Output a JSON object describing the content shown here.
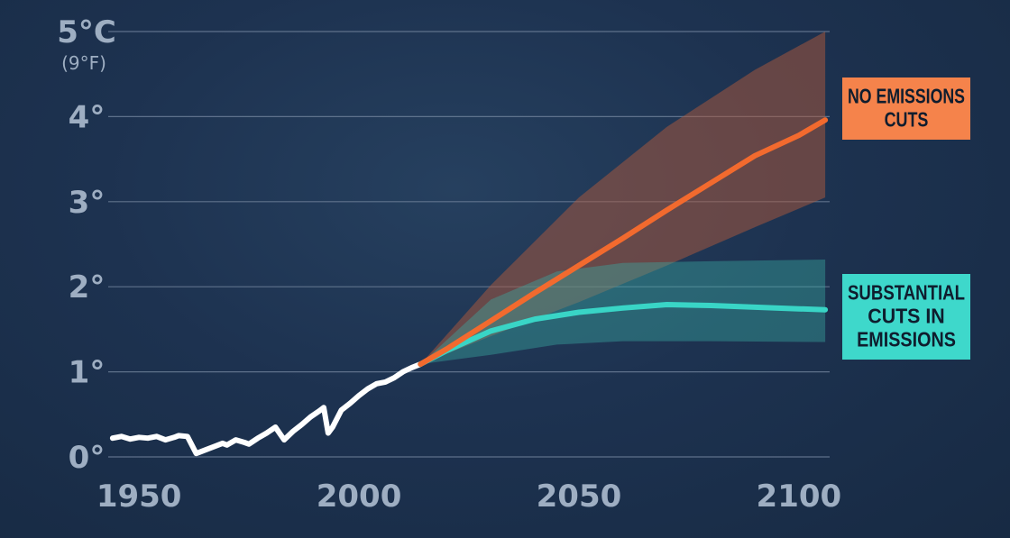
{
  "chart_data": {
    "type": "line",
    "xlim": [
      1943,
      2107
    ],
    "ylim": [
      0,
      5
    ],
    "y_ticks": [
      {
        "value": 0,
        "label": "0°"
      },
      {
        "value": 1,
        "label": "1°"
      },
      {
        "value": 2,
        "label": "2°"
      },
      {
        "value": 3,
        "label": "3°"
      },
      {
        "value": 4,
        "label": "4°"
      },
      {
        "value": 5,
        "label": "5°C",
        "sublabel": "(9°F)"
      }
    ],
    "x_ticks": [
      {
        "value": 1950,
        "label": "1950"
      },
      {
        "value": 2000,
        "label": "2000"
      },
      {
        "value": 2050,
        "label": "2050"
      },
      {
        "value": 2100,
        "label": "2100"
      }
    ],
    "grid": true,
    "series": [
      {
        "key": "historical",
        "color": "#ffffff",
        "points": [
          [
            1944,
            0.22
          ],
          [
            1946,
            0.24
          ],
          [
            1948,
            0.21
          ],
          [
            1950,
            0.23
          ],
          [
            1952,
            0.22
          ],
          [
            1954,
            0.24
          ],
          [
            1956,
            0.2
          ],
          [
            1958,
            0.23
          ],
          [
            1959,
            0.25
          ],
          [
            1961,
            0.24
          ],
          [
            1963,
            0.04
          ],
          [
            1965,
            0.08
          ],
          [
            1967,
            0.12
          ],
          [
            1969,
            0.16
          ],
          [
            1970,
            0.14
          ],
          [
            1972,
            0.2
          ],
          [
            1974,
            0.17
          ],
          [
            1975,
            0.15
          ],
          [
            1977,
            0.22
          ],
          [
            1979,
            0.28
          ],
          [
            1981,
            0.35
          ],
          [
            1983,
            0.2
          ],
          [
            1985,
            0.3
          ],
          [
            1987,
            0.38
          ],
          [
            1989,
            0.47
          ],
          [
            1991,
            0.54
          ],
          [
            1992,
            0.58
          ],
          [
            1993,
            0.28
          ],
          [
            1994,
            0.35
          ],
          [
            1996,
            0.55
          ],
          [
            1998,
            0.63
          ],
          [
            2000,
            0.72
          ],
          [
            2002,
            0.8
          ],
          [
            2004,
            0.86
          ],
          [
            2006,
            0.88
          ],
          [
            2008,
            0.93
          ],
          [
            2010,
            1.0
          ],
          [
            2012,
            1.05
          ],
          [
            2014,
            1.09
          ]
        ]
      },
      {
        "key": "no_cuts",
        "color": "#f26a2e",
        "points": [
          [
            2014,
            1.09
          ],
          [
            2020,
            1.27
          ],
          [
            2030,
            1.6
          ],
          [
            2040,
            1.93
          ],
          [
            2050,
            2.25
          ],
          [
            2060,
            2.57
          ],
          [
            2070,
            2.9
          ],
          [
            2080,
            3.22
          ],
          [
            2090,
            3.54
          ],
          [
            2100,
            3.78
          ],
          [
            2106,
            3.96
          ]
        ],
        "band_upper": [
          [
            2014,
            1.09
          ],
          [
            2030,
            2.02
          ],
          [
            2050,
            3.05
          ],
          [
            2070,
            3.88
          ],
          [
            2090,
            4.55
          ],
          [
            2106,
            5.0
          ]
        ],
        "band_lower": [
          [
            2014,
            1.09
          ],
          [
            2030,
            1.42
          ],
          [
            2050,
            1.82
          ],
          [
            2070,
            2.25
          ],
          [
            2090,
            2.7
          ],
          [
            2106,
            3.05
          ]
        ],
        "band_color": "#b05a3c"
      },
      {
        "key": "substantial_cuts",
        "color": "#39d5c6",
        "points": [
          [
            2014,
            1.09
          ],
          [
            2020,
            1.25
          ],
          [
            2030,
            1.48
          ],
          [
            2040,
            1.62
          ],
          [
            2050,
            1.7
          ],
          [
            2060,
            1.75
          ],
          [
            2070,
            1.79
          ],
          [
            2080,
            1.78
          ],
          [
            2090,
            1.76
          ],
          [
            2100,
            1.74
          ],
          [
            2106,
            1.73
          ]
        ],
        "band_upper": [
          [
            2014,
            1.09
          ],
          [
            2030,
            1.85
          ],
          [
            2045,
            2.18
          ],
          [
            2060,
            2.28
          ],
          [
            2080,
            2.3
          ],
          [
            2106,
            2.32
          ]
        ],
        "band_lower": [
          [
            2014,
            1.09
          ],
          [
            2030,
            1.2
          ],
          [
            2045,
            1.32
          ],
          [
            2060,
            1.36
          ],
          [
            2080,
            1.36
          ],
          [
            2106,
            1.35
          ]
        ],
        "band_color": "#3aa9a3"
      }
    ],
    "annotations": [
      {
        "key": "no_cuts",
        "lines": [
          "NO EMISSIONS",
          "CUTS"
        ],
        "bg": "#f5834b"
      },
      {
        "key": "substantial_cuts",
        "lines": [
          "SUBSTANTIAL",
          "CUTS IN",
          "EMISSIONS"
        ],
        "bg": "#3ed8cb"
      }
    ]
  }
}
